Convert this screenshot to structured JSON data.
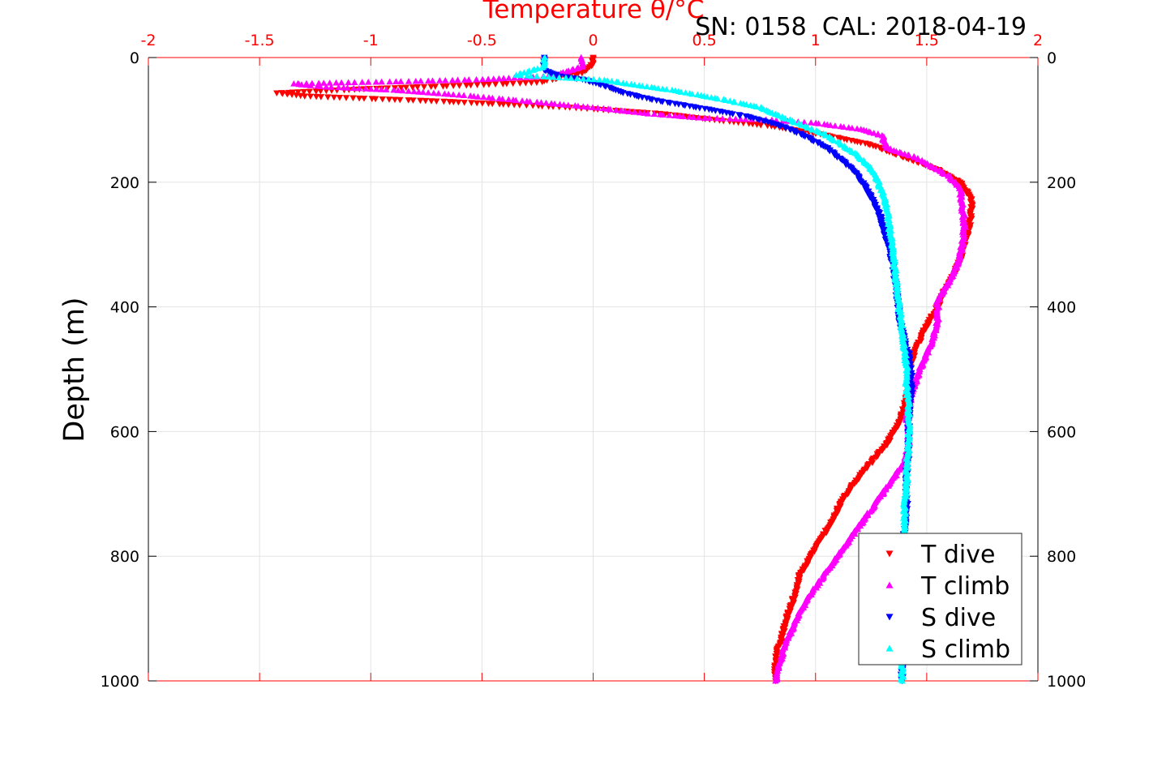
{
  "chart_data": {
    "type": "scatter",
    "title": "Temperature θ/°C",
    "annotation": "SN: 0158  CAL: 2018-04-19",
    "xlabel": "Temperature θ/°C",
    "ylabel": "Depth (m)",
    "xlim": [
      -2,
      2
    ],
    "ylim": [
      0,
      1000
    ],
    "y_reversed": true,
    "grid": true,
    "x_axis_position": "top",
    "y_axis_mirrored": "both-sides",
    "x_ticks": [
      "-2",
      "-1.5",
      "-1",
      "-0.5",
      "0",
      "0.5",
      "1",
      "1.5",
      "2"
    ],
    "y_ticks": [
      "0",
      "200",
      "400",
      "600",
      "800",
      "1000"
    ],
    "legend_position": "bottom-right",
    "series": [
      {
        "name": "T dive",
        "marker": "triangle-down",
        "color": "#ff0000",
        "points": [
          [
            0.0,
            0
          ],
          [
            0.0,
            10
          ],
          [
            -0.05,
            25
          ],
          [
            -0.25,
            40
          ],
          [
            -0.6,
            45
          ],
          [
            -1.0,
            50
          ],
          [
            -1.3,
            55
          ],
          [
            -1.42,
            57
          ],
          [
            -1.3,
            62
          ],
          [
            -1.0,
            66
          ],
          [
            -0.7,
            70
          ],
          [
            -0.4,
            75
          ],
          [
            -0.1,
            80
          ],
          [
            0.1,
            85
          ],
          [
            0.3,
            90
          ],
          [
            0.55,
            100
          ],
          [
            0.8,
            110
          ],
          [
            1.05,
            125
          ],
          [
            1.25,
            140
          ],
          [
            1.4,
            160
          ],
          [
            1.55,
            180
          ],
          [
            1.65,
            200
          ],
          [
            1.7,
            225
          ],
          [
            1.7,
            250
          ],
          [
            1.69,
            275
          ],
          [
            1.67,
            300
          ],
          [
            1.65,
            325
          ],
          [
            1.62,
            350
          ],
          [
            1.58,
            375
          ],
          [
            1.55,
            400
          ],
          [
            1.5,
            430
          ],
          [
            1.45,
            470
          ],
          [
            1.42,
            500
          ],
          [
            1.42,
            530
          ],
          [
            1.4,
            560
          ],
          [
            1.37,
            590
          ],
          [
            1.32,
            620
          ],
          [
            1.25,
            650
          ],
          [
            1.18,
            680
          ],
          [
            1.12,
            710
          ],
          [
            1.08,
            740
          ],
          [
            1.03,
            770
          ],
          [
            0.98,
            800
          ],
          [
            0.93,
            830
          ],
          [
            0.9,
            870
          ],
          [
            0.87,
            900
          ],
          [
            0.85,
            930
          ],
          [
            0.83,
            950
          ],
          [
            0.82,
            975
          ],
          [
            0.82,
            1000
          ]
        ]
      },
      {
        "name": "T climb",
        "marker": "triangle-up",
        "color": "#ff00ff",
        "points": [
          [
            -0.05,
            0
          ],
          [
            -0.05,
            15
          ],
          [
            -0.2,
            30
          ],
          [
            -0.5,
            35
          ],
          [
            -0.8,
            38
          ],
          [
            -1.1,
            40
          ],
          [
            -1.35,
            42
          ],
          [
            -1.2,
            47
          ],
          [
            -0.9,
            52
          ],
          [
            -0.6,
            60
          ],
          [
            -0.3,
            70
          ],
          [
            0.0,
            80
          ],
          [
            0.25,
            90
          ],
          [
            0.5,
            97
          ],
          [
            0.8,
            100
          ],
          [
            1.0,
            105
          ],
          [
            1.2,
            115
          ],
          [
            1.3,
            125
          ],
          [
            1.32,
            145
          ],
          [
            1.45,
            160
          ],
          [
            1.52,
            175
          ],
          [
            1.6,
            190
          ],
          [
            1.65,
            210
          ],
          [
            1.66,
            240
          ],
          [
            1.67,
            270
          ],
          [
            1.66,
            300
          ],
          [
            1.64,
            330
          ],
          [
            1.6,
            360
          ],
          [
            1.55,
            390
          ],
          [
            1.55,
            420
          ],
          [
            1.52,
            460
          ],
          [
            1.47,
            500
          ],
          [
            1.43,
            540
          ],
          [
            1.41,
            580
          ],
          [
            1.42,
            620
          ],
          [
            1.4,
            650
          ],
          [
            1.34,
            680
          ],
          [
            1.28,
            710
          ],
          [
            1.22,
            740
          ],
          [
            1.16,
            770
          ],
          [
            1.1,
            800
          ],
          [
            1.04,
            830
          ],
          [
            0.98,
            860
          ],
          [
            0.93,
            890
          ],
          [
            0.89,
            920
          ],
          [
            0.86,
            945
          ],
          [
            0.84,
            970
          ],
          [
            0.82,
            1000
          ]
        ]
      },
      {
        "name": "S dive",
        "marker": "triangle-down",
        "color": "#0000ff",
        "points": [
          [
            -0.22,
            0
          ],
          [
            -0.22,
            20
          ],
          [
            -0.15,
            30
          ],
          [
            -0.05,
            35
          ],
          [
            0.05,
            45
          ],
          [
            0.15,
            58
          ],
          [
            0.3,
            70
          ],
          [
            0.5,
            82
          ],
          [
            0.7,
            95
          ],
          [
            0.85,
            110
          ],
          [
            0.95,
            125
          ],
          [
            1.05,
            145
          ],
          [
            1.12,
            165
          ],
          [
            1.18,
            185
          ],
          [
            1.22,
            205
          ],
          [
            1.26,
            230
          ],
          [
            1.29,
            255
          ],
          [
            1.31,
            280
          ],
          [
            1.33,
            305
          ],
          [
            1.35,
            335
          ],
          [
            1.36,
            365
          ],
          [
            1.37,
            395
          ],
          [
            1.38,
            425
          ],
          [
            1.4,
            455
          ],
          [
            1.42,
            480
          ],
          [
            1.43,
            510
          ],
          [
            1.43,
            540
          ],
          [
            1.42,
            570
          ],
          [
            1.42,
            600
          ],
          [
            1.42,
            630
          ],
          [
            1.41,
            660
          ],
          [
            1.41,
            690
          ],
          [
            1.41,
            720
          ],
          [
            1.4,
            760
          ],
          [
            1.4,
            800
          ],
          [
            1.4,
            850
          ],
          [
            1.39,
            900
          ],
          [
            1.39,
            950
          ],
          [
            1.39,
            1000
          ]
        ]
      },
      {
        "name": "S climb",
        "marker": "triangle-up",
        "color": "#00ffff",
        "points": [
          [
            -0.22,
            0
          ],
          [
            -0.22,
            15
          ],
          [
            -0.35,
            28
          ],
          [
            -0.15,
            32
          ],
          [
            0.05,
            36
          ],
          [
            0.15,
            42
          ],
          [
            0.35,
            52
          ],
          [
            0.55,
            65
          ],
          [
            0.75,
            80
          ],
          [
            0.85,
            95
          ],
          [
            0.95,
            110
          ],
          [
            1.05,
            125
          ],
          [
            1.12,
            140
          ],
          [
            1.18,
            155
          ],
          [
            1.23,
            170
          ],
          [
            1.27,
            190
          ],
          [
            1.3,
            215
          ],
          [
            1.32,
            240
          ],
          [
            1.33,
            265
          ],
          [
            1.34,
            290
          ],
          [
            1.35,
            320
          ],
          [
            1.36,
            350
          ],
          [
            1.37,
            380
          ],
          [
            1.38,
            410
          ],
          [
            1.39,
            440
          ],
          [
            1.4,
            470
          ],
          [
            1.41,
            500
          ],
          [
            1.41,
            530
          ],
          [
            1.42,
            560
          ],
          [
            1.42,
            590
          ],
          [
            1.42,
            620
          ],
          [
            1.41,
            650
          ],
          [
            1.41,
            680
          ],
          [
            1.4,
            720
          ],
          [
            1.4,
            760
          ],
          [
            1.4,
            800
          ],
          [
            1.4,
            850
          ],
          [
            1.39,
            900
          ],
          [
            1.39,
            950
          ],
          [
            1.39,
            1000
          ]
        ]
      }
    ]
  }
}
